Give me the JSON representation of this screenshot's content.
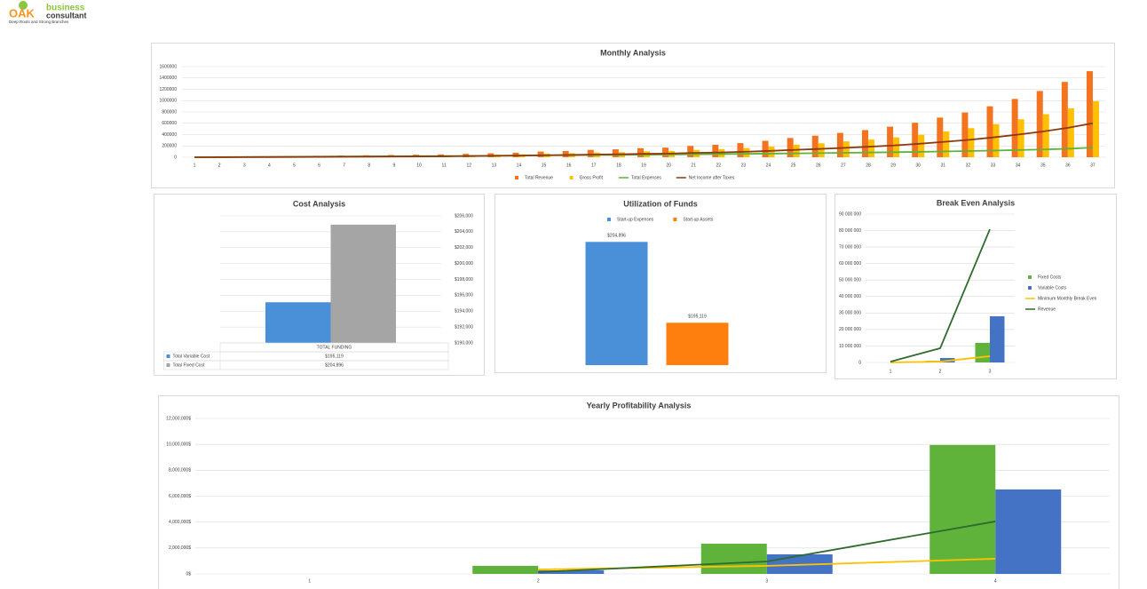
{
  "logo": {
    "brand": "OAK",
    "name1": "business",
    "name2": "consultant",
    "tagline": "Deep Roots and Strong Branches"
  },
  "chart_data": [
    {
      "type": "bar",
      "title": "Monthly Analysis",
      "categories": [
        1,
        2,
        3,
        4,
        5,
        6,
        7,
        8,
        9,
        10,
        11,
        12,
        13,
        14,
        15,
        16,
        17,
        18,
        19,
        20,
        21,
        22,
        23,
        24,
        25,
        26,
        27,
        28,
        29,
        30,
        31,
        32,
        33,
        34,
        35,
        36,
        37
      ],
      "series": [
        {
          "name": "Total Revenue",
          "type": "bar",
          "color": "#f4731f",
          "values": [
            0,
            5000,
            10000,
            15000,
            20000,
            25000,
            30000,
            35000,
            40000,
            45000,
            50000,
            60000,
            70000,
            80000,
            100000,
            110000,
            130000,
            140000,
            160000,
            170000,
            200000,
            220000,
            250000,
            290000,
            340000,
            380000,
            430000,
            480000,
            540000,
            610000,
            700000,
            790000,
            900000,
            1030000,
            1170000,
            1330000,
            1520000
          ]
        },
        {
          "name": "Gross Profit",
          "type": "bar",
          "color": "#ffc000",
          "values": [
            0,
            3000,
            6000,
            10000,
            13000,
            16000,
            20000,
            23000,
            26000,
            29000,
            33000,
            39000,
            46000,
            52000,
            65000,
            72000,
            85000,
            91000,
            104000,
            111000,
            130000,
            143000,
            163000,
            189000,
            221000,
            247000,
            280000,
            312000,
            351000,
            397000,
            455000,
            514000,
            585000,
            670000,
            760000,
            865000,
            990000
          ]
        },
        {
          "name": "Total Expenses",
          "type": "line",
          "color": "#5fb33a",
          "values": [
            0,
            3000,
            5000,
            7000,
            9000,
            11000,
            13000,
            15000,
            17000,
            19000,
            21000,
            24000,
            27000,
            30000,
            33000,
            36000,
            39000,
            42000,
            45000,
            48000,
            52000,
            56000,
            60000,
            64000,
            68000,
            73000,
            78000,
            83000,
            89000,
            95000,
            102000,
            110000,
            118000,
            127000,
            137000,
            150000,
            170000
          ]
        },
        {
          "name": "Net Income after Taxes",
          "type": "line",
          "color": "#8b3a0e",
          "values": [
            0,
            1000,
            2000,
            3000,
            5000,
            7000,
            9000,
            11000,
            13000,
            15000,
            17000,
            21000,
            25000,
            29000,
            35000,
            40000,
            47000,
            52000,
            60000,
            65000,
            76000,
            84000,
            96000,
            111000,
            130000,
            146000,
            165000,
            185000,
            208000,
            236000,
            270000,
            306000,
            350000,
            400000,
            455000,
            520000,
            600000
          ]
        }
      ],
      "ylim": [
        0,
        1600000
      ],
      "yticks": [
        0,
        200000,
        400000,
        600000,
        800000,
        1000000,
        1200000,
        1400000,
        1600000
      ],
      "grid": true,
      "legend": "bottom",
      "axis": "left"
    },
    {
      "type": "bar",
      "title": "Cost Analysis",
      "categories": [
        "TOTAL FUNDING"
      ],
      "series": [
        {
          "name": "Total Variable Cost",
          "type": "bar",
          "color": "#4a90d9",
          "values": [
            195119
          ],
          "value_labels": [
            "$195,119"
          ]
        },
        {
          "name": "Total Fixed Cost",
          "type": "bar",
          "color": "#a5a5a5",
          "values": [
            204896
          ],
          "value_labels": [
            "$204,896"
          ]
        }
      ],
      "ylim": [
        190000,
        206000
      ],
      "yticks": [
        {
          "value": 190000,
          "label": "$190,000"
        },
        {
          "value": 192000,
          "label": "$192,000"
        },
        {
          "value": 194000,
          "label": "$194,000"
        },
        {
          "value": 196000,
          "label": "$196,000"
        },
        {
          "value": 198000,
          "label": "$198,000"
        },
        {
          "value": 200000,
          "label": "$200,000"
        },
        {
          "value": 202000,
          "label": "$202,000"
        },
        {
          "value": 204000,
          "label": "$204,000"
        },
        {
          "value": 206000,
          "label": "$206,000"
        }
      ],
      "grid": true,
      "axis": "right",
      "data_table": true
    },
    {
      "type": "bar",
      "title": "Utilization of Funds",
      "categories": [
        null
      ],
      "series": [
        {
          "name": "Start-up Expenses",
          "type": "bar",
          "color": "#4a90d9",
          "values": [
            204896
          ],
          "value_labels": [
            "$204,896"
          ]
        },
        {
          "name": "Start-up Assets",
          "type": "bar",
          "color": "#ff7f0e",
          "values": [
            195119
          ],
          "value_labels": [
            "$195,119"
          ]
        }
      ],
      "ylim": [
        190000,
        206000
      ],
      "grid": false,
      "legend": "top",
      "data_labels": true
    },
    {
      "type": "bar",
      "title": "Break Even Analysis",
      "categories": [
        1,
        2,
        3
      ],
      "series": [
        {
          "name": "Fixed Costs",
          "type": "bar",
          "color": "#5fb33a",
          "values": [
            0,
            1000000,
            11900000
          ]
        },
        {
          "name": "Variable Costs",
          "type": "bar",
          "color": "#4472c4",
          "values": [
            0,
            2700000,
            28000000
          ]
        },
        {
          "name": "Minimum Monthly Break Even",
          "type": "line",
          "color": "#ffc000",
          "values": [
            0,
            500000,
            3800000
          ]
        },
        {
          "name": "Revenue",
          "type": "line",
          "color": "#2e6b2e",
          "values": [
            500000,
            8600000,
            80800000
          ]
        }
      ],
      "ylim": [
        0,
        90000000
      ],
      "yticks": [
        0,
        {
          "value": 10000000,
          "label": "10 000 000"
        },
        {
          "value": 20000000,
          "label": "20 000 000"
        },
        {
          "value": 30000000,
          "label": "30 000 000"
        },
        {
          "value": 40000000,
          "label": "40 000 000"
        },
        {
          "value": 50000000,
          "label": "50 000 000"
        },
        {
          "value": 60000000,
          "label": "60 000 000"
        },
        {
          "value": 70000000,
          "label": "70 000 000"
        },
        {
          "value": 80000000,
          "label": "80 000 000"
        },
        {
          "value": 90000000,
          "label": "90 000 000"
        }
      ],
      "grid": true,
      "legend": "right",
      "axis": "left"
    },
    {
      "type": "bar",
      "title": "Yearly Profitability Analysis",
      "categories": [
        1,
        2,
        3,
        4
      ],
      "series": [
        {
          "type": "bar",
          "color": "#5fb33a",
          "values": [
            0,
            620000,
            2330000,
            9950000
          ]
        },
        {
          "type": "bar",
          "color": "#4472c4",
          "values": [
            0,
            270000,
            1510000,
            6520000
          ]
        },
        {
          "type": "line",
          "color": "#ffc000",
          "values": [
            null,
            340000,
            620000,
            1170000
          ]
        },
        {
          "type": "line",
          "color": "#2e6b2e",
          "values": [
            null,
            140000,
            960000,
            4050000
          ]
        }
      ],
      "ylim": [
        0,
        12000000
      ],
      "yticks": [
        {
          "value": 0,
          "label": "0$"
        },
        {
          "value": 2000000,
          "label": "2,000,000$"
        },
        {
          "value": 4000000,
          "label": "4,000,000$"
        },
        {
          "value": 6000000,
          "label": "6,000,000$"
        },
        {
          "value": 8000000,
          "label": "8,000,000$"
        },
        {
          "value": 10000000,
          "label": "10,000,000$"
        },
        {
          "value": 12000000,
          "label": "12,000,000$"
        }
      ],
      "grid": true,
      "axis": "left"
    }
  ]
}
